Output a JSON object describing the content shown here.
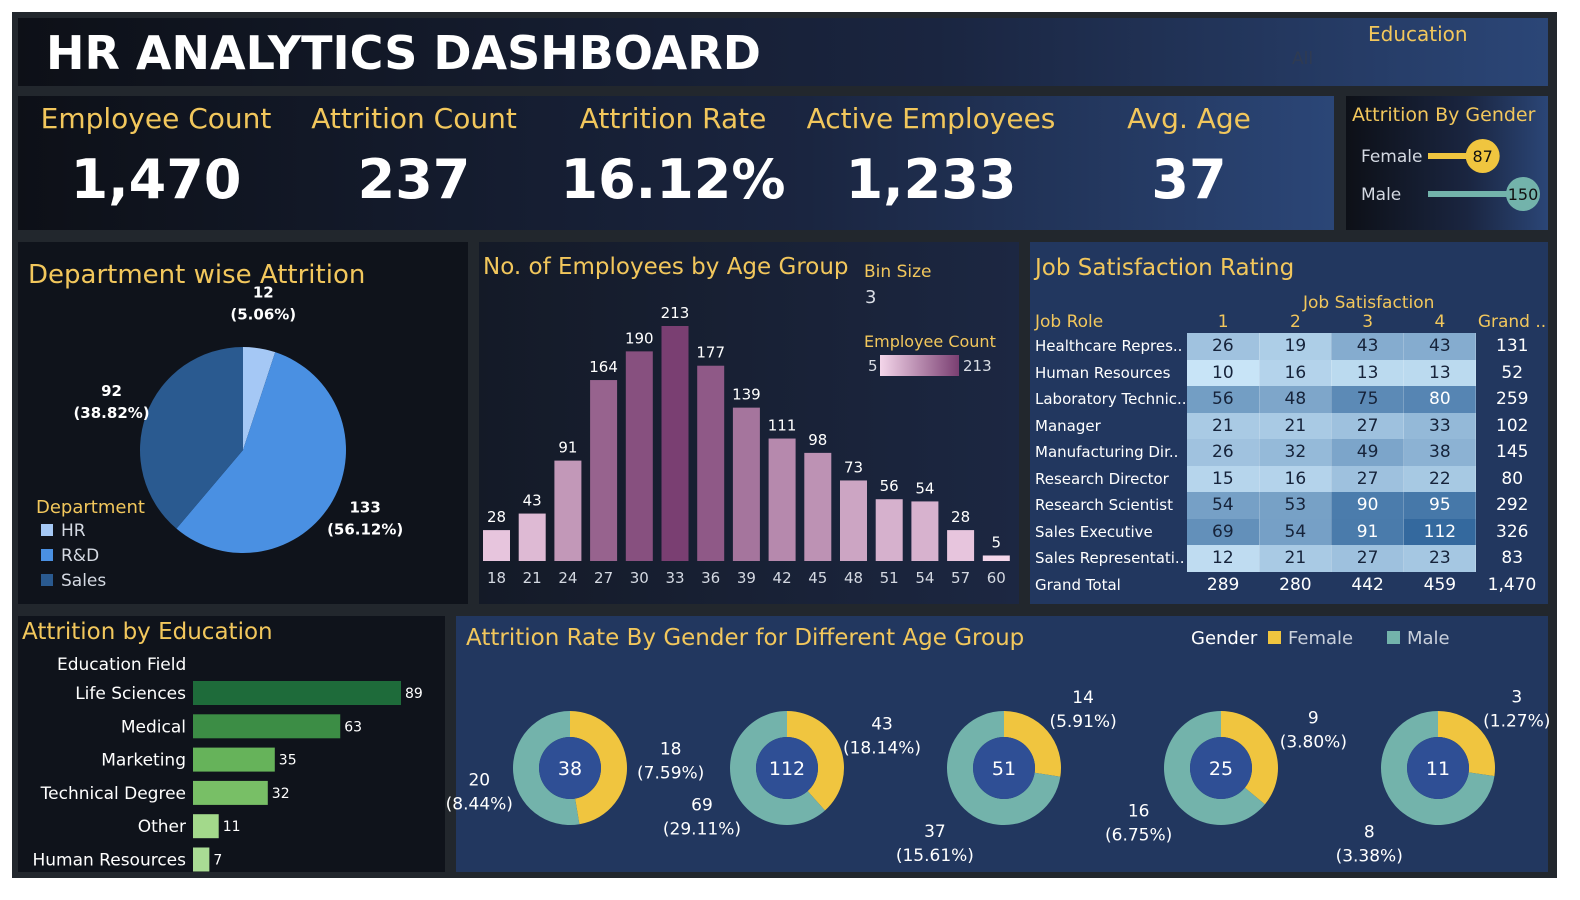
{
  "header": {
    "title": "HR ANALYTICS DASHBOARD",
    "filter_label": "Education",
    "filter_value": "All"
  },
  "kpis": [
    {
      "label": "Employee Count",
      "value": "1,470"
    },
    {
      "label": "Attrition Count",
      "value": "237"
    },
    {
      "label": "Attrition Rate",
      "value": "16.12%"
    },
    {
      "label": "Active Employees",
      "value": "1,233"
    },
    {
      "label": "Avg. Age",
      "value": "37"
    }
  ],
  "colors": {
    "gold": "#f2c75c",
    "female": "#f0c53f",
    "male": "#73b3ab",
    "donut_center": "#2f4f95",
    "hr": "#a5c8f5",
    "rd": "#4a90e2",
    "sales": "#2a5a90"
  },
  "gender_panel": {
    "title": "Attrition By Gender",
    "rows": [
      {
        "label": "Female",
        "value": 87,
        "color": "#f0c53f"
      },
      {
        "label": "Male",
        "value": 150,
        "color": "#73b3ab"
      }
    ]
  },
  "department_panel": {
    "title": "Department wise Attrition",
    "legend_title": "Department"
  },
  "age_panel": {
    "title": "No. of Employees by Age Group",
    "bin_label": "Bin Size",
    "bin_value": "3",
    "legend_title": "Employee Count",
    "legend_min": "5",
    "legend_max": "213"
  },
  "job_panel": {
    "title": "Job Satisfaction Rating",
    "column_group": "Job Satisfaction",
    "row_header": "Job Role",
    "cols": [
      "1",
      "2",
      "3",
      "4"
    ],
    "grand_header": "Grand ..",
    "rows": [
      {
        "role": "Healthcare Repres..",
        "vals": [
          26,
          19,
          43,
          43
        ],
        "total": "131"
      },
      {
        "role": "Human Resources",
        "vals": [
          10,
          16,
          13,
          13
        ],
        "total": "52"
      },
      {
        "role": "Laboratory Technic..",
        "vals": [
          56,
          48,
          75,
          80
        ],
        "total": "259"
      },
      {
        "role": "Manager",
        "vals": [
          21,
          21,
          27,
          33
        ],
        "total": "102"
      },
      {
        "role": "Manufacturing Dir..",
        "vals": [
          26,
          32,
          49,
          38
        ],
        "total": "145"
      },
      {
        "role": "Research Director",
        "vals": [
          15,
          16,
          27,
          22
        ],
        "total": "80"
      },
      {
        "role": "Research Scientist",
        "vals": [
          54,
          53,
          90,
          95
        ],
        "total": "292"
      },
      {
        "role": "Sales Executive",
        "vals": [
          69,
          54,
          91,
          112
        ],
        "total": "326"
      },
      {
        "role": "Sales Representati..",
        "vals": [
          12,
          21,
          27,
          23
        ],
        "total": "83"
      }
    ],
    "grand_total_label": "Grand Total",
    "grand_totals": [
      "289",
      "280",
      "442",
      "459",
      "1,470"
    ]
  },
  "education_panel": {
    "title": "Attrition by Education",
    "axis_label": "Education Field"
  },
  "donut_panel": {
    "title": "Attrition Rate By Gender for Different Age Group",
    "legend_title": "Gender",
    "legend_female": "Female",
    "legend_male": "Male"
  },
  "chart_data": [
    {
      "type": "pie",
      "name": "department",
      "categories": [
        "HR",
        "R&D",
        "Sales"
      ],
      "values": [
        12,
        133,
        92
      ],
      "percent": [
        "5.06%",
        "56.12%",
        "38.82%"
      ],
      "legend": "bottom-left"
    },
    {
      "type": "bar",
      "name": "age",
      "categories": [
        "18",
        "21",
        "24",
        "27",
        "30",
        "33",
        "36",
        "39",
        "42",
        "45",
        "48",
        "51",
        "54",
        "57",
        "60"
      ],
      "values": [
        28,
        43,
        91,
        164,
        190,
        213,
        177,
        139,
        111,
        98,
        73,
        56,
        54,
        28,
        5
      ],
      "ylim": [
        0,
        213
      ]
    },
    {
      "type": "bar",
      "name": "education",
      "orientation": "horizontal",
      "categories": [
        "Life Sciences",
        "Medical",
        "Marketing",
        "Technical Degree",
        "Other",
        "Human Resources"
      ],
      "values": [
        89,
        63,
        35,
        32,
        11,
        7
      ],
      "colors": [
        "#1e6b3a",
        "#3c8d45",
        "#66b35a",
        "#78bf66",
        "#a3d98b",
        "#a9dc94"
      ]
    },
    {
      "type": "pie",
      "name": "gender_age",
      "groups": [
        {
          "total": "38",
          "female": 18,
          "female_label": "(7.59%)",
          "male": 20,
          "male_label": "(8.44%)"
        },
        {
          "total": "112",
          "female": 43,
          "female_label": "(18.14%)",
          "male": 69,
          "male_label": "(29.11%)"
        },
        {
          "total": "51",
          "female": 14,
          "female_label": "(5.91%)",
          "male": 37,
          "male_label": "(15.61%)"
        },
        {
          "total": "25",
          "female": 9,
          "female_label": "(3.80%)",
          "male": 16,
          "male_label": "(6.75%)"
        },
        {
          "total": "11",
          "female": 3,
          "female_label": "(1.27%)",
          "male": 8,
          "male_label": "(3.38%)"
        }
      ]
    }
  ]
}
